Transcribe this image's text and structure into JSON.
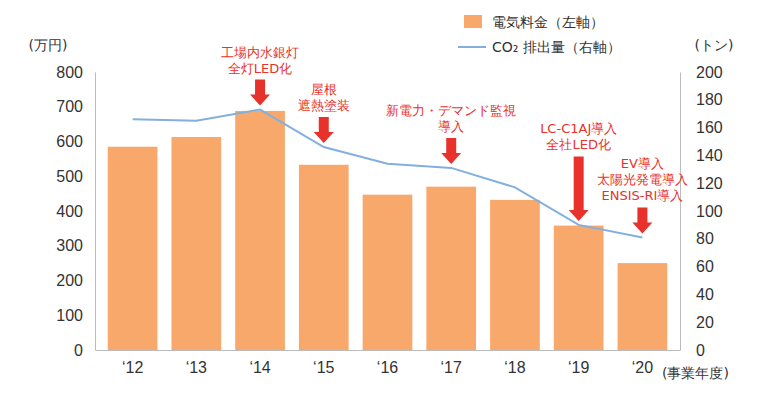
{
  "chart_data": {
    "type": "bar",
    "categories": [
      "‘12",
      "‘13",
      "‘14",
      "‘15",
      "‘16",
      "‘17",
      "‘18",
      "‘19",
      "‘20"
    ],
    "x_label": "(事業年度)",
    "y_label": "(万円)",
    "y2_label": "(トン)",
    "ylim": [
      0,
      800
    ],
    "yticks": [
      0,
      100,
      200,
      300,
      400,
      500,
      600,
      700,
      800
    ],
    "y2lim": [
      0,
      200
    ],
    "y2ticks": [
      0,
      20,
      40,
      60,
      80,
      100,
      120,
      140,
      160,
      180,
      200
    ],
    "grid": false,
    "legend": "top-right",
    "series": [
      {
        "name": "電気料金（左軸）",
        "type": "bar",
        "color": "#f9a86c",
        "values": [
          585,
          613,
          688,
          533,
          447,
          470,
          432,
          358,
          250
        ]
      },
      {
        "name": "CO₂ 排出量（右軸）",
        "type": "line",
        "color": "#82b0de",
        "axis": "y2",
        "values": [
          166,
          165,
          173,
          146,
          134,
          131,
          117,
          90,
          81
        ]
      }
    ],
    "annotations": [
      {
        "category": "‘14",
        "text": [
          "工場内水銀灯",
          "全灯LED化"
        ]
      },
      {
        "category": "‘15",
        "text": [
          "屋根",
          "遮熱塗装"
        ]
      },
      {
        "category": "‘17",
        "text": [
          "新電力・デマンド監視",
          "導入"
        ]
      },
      {
        "category": "‘19",
        "text": [
          "LC-C1AJ導入",
          "全社LED化"
        ]
      },
      {
        "category": "‘20",
        "text": [
          "EV導入",
          "太陽光発電導入",
          "ENSIS-RI導入"
        ]
      }
    ]
  }
}
